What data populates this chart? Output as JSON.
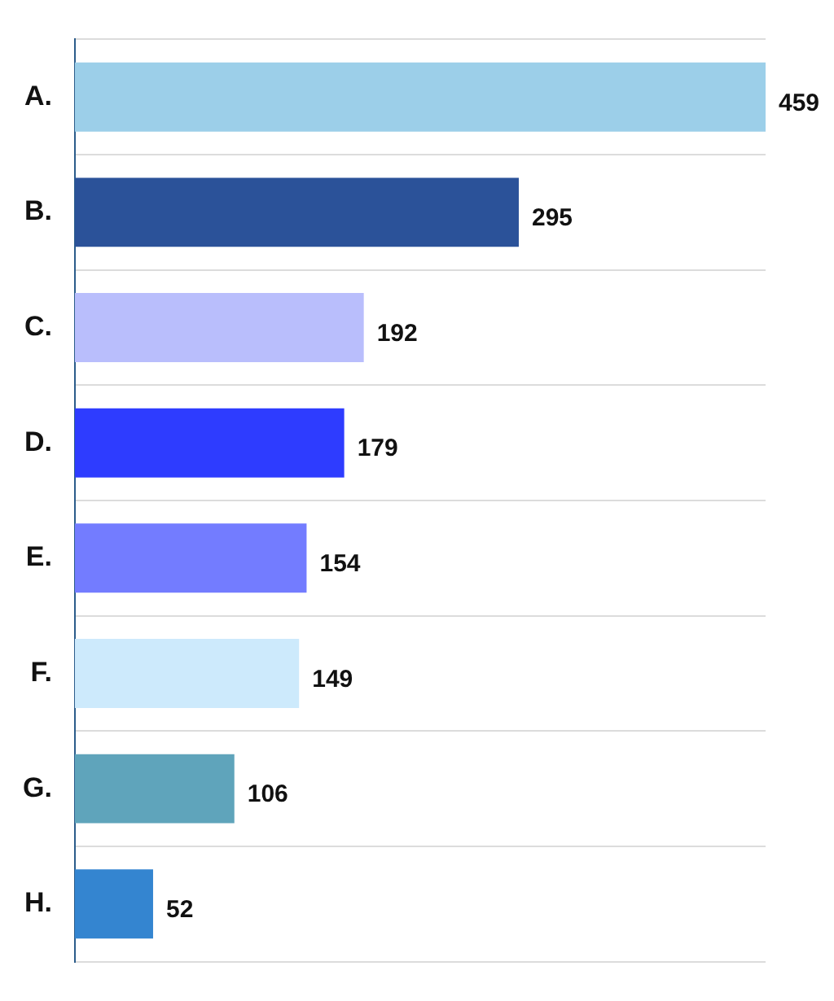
{
  "chart_data": {
    "type": "bar",
    "orientation": "horizontal",
    "categories": [
      "A.",
      "B.",
      "C.",
      "D.",
      "E.",
      "F.",
      "G.",
      "H."
    ],
    "values": [
      459,
      295,
      192,
      179,
      154,
      149,
      106,
      52
    ],
    "colors": [
      "#9ccfe9",
      "#2b5299",
      "#b9befc",
      "#2e3cff",
      "#737cff",
      "#cdeafc",
      "#5fa4bb",
      "#3485d0"
    ],
    "data_labels": true,
    "grid": "y",
    "legend": false
  }
}
